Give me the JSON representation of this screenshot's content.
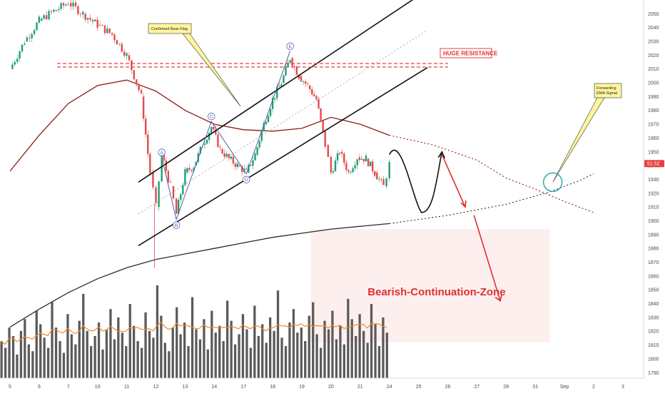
{
  "chart_data": {
    "type": "candlestick",
    "y_axis": {
      "position": "right",
      "ylim": [
        1786,
        2060
      ],
      "ticks": [
        2050,
        2040,
        2030,
        2020,
        2010,
        2000,
        1990,
        1980,
        1970,
        1960,
        1950,
        1940,
        1930,
        1920,
        1910,
        1900,
        1890,
        1880,
        1870,
        1860,
        1850,
        1840,
        1830,
        1820,
        1810,
        1800,
        1790
      ],
      "last_price_label": "51.52",
      "last_price_value": 1941.5
    },
    "x_axis": {
      "ticks": [
        "5",
        "6",
        "7",
        "10",
        "11",
        "12",
        "13",
        "14",
        "17",
        "18",
        "19",
        "20",
        "21",
        "24",
        "25",
        "26",
        "27",
        "28",
        "31",
        "Sep",
        "2",
        "3"
      ],
      "tick_day_index": [
        0,
        1,
        2,
        3,
        4,
        5,
        6,
        7,
        8,
        9,
        10,
        11,
        12,
        13,
        14,
        15,
        16,
        17,
        18,
        19,
        20,
        21
      ]
    },
    "labels": {
      "bear_flag_callout": "Confirmed Bear-Flag",
      "resistance_box": "HUGE RESISTANCE",
      "ema_callout": "Forwarding EMA-Signal",
      "zone_label": "Bearish-Continuation-Zone",
      "wave_points": [
        "A",
        "B",
        "C",
        "D",
        "E"
      ]
    },
    "wave_points": [
      {
        "label": "A",
        "day": 5.2,
        "price": 1946
      },
      {
        "label": "B",
        "day": 5.7,
        "price": 1901
      },
      {
        "label": "C",
        "day": 6.9,
        "price": 1972
      },
      {
        "label": "D",
        "day": 8.1,
        "price": 1934
      },
      {
        "label": "E",
        "day": 9.6,
        "price": 2023
      }
    ],
    "resistance_price": 2014,
    "channel": {
      "upper": [
        {
          "day": 4.4,
          "price": 1928
        },
        {
          "day": 14.0,
          "price": 2063
        }
      ],
      "lower": [
        {
          "day": 4.4,
          "price": 1882
        },
        {
          "day": 14.3,
          "price": 2011
        }
      ],
      "middle_dotted": [
        {
          "day": 4.4,
          "price": 1905
        },
        {
          "day": 14.3,
          "price": 2038
        }
      ]
    },
    "series": [
      {
        "style": "slow-ema",
        "color": "#2b2b2b",
        "points": [
          [
            0,
            1823
          ],
          [
            1,
            1836
          ],
          [
            2,
            1848
          ],
          [
            3,
            1858
          ],
          [
            4,
            1866
          ],
          [
            5,
            1872
          ],
          [
            6,
            1876
          ],
          [
            7,
            1880
          ],
          [
            8,
            1884
          ],
          [
            9,
            1888
          ],
          [
            10,
            1891
          ],
          [
            11,
            1894
          ],
          [
            12,
            1896
          ],
          [
            13,
            1898
          ]
        ],
        "projection": [
          [
            13,
            1898
          ],
          [
            15,
            1904
          ],
          [
            17,
            1912
          ],
          [
            18.5,
            1921
          ],
          [
            19.5,
            1929
          ],
          [
            20,
            1934
          ]
        ]
      },
      {
        "style": "fast-ema",
        "color": "#8b1a1a",
        "points": [
          [
            0,
            1936
          ],
          [
            1,
            1962
          ],
          [
            2,
            1985
          ],
          [
            3,
            1998
          ],
          [
            4,
            2002
          ],
          [
            5,
            1994
          ],
          [
            6,
            1980
          ],
          [
            7,
            1970
          ],
          [
            8,
            1966
          ],
          [
            9,
            1965
          ],
          [
            10,
            1967
          ],
          [
            11,
            1975
          ],
          [
            12,
            1970
          ],
          [
            13,
            1962
          ]
        ],
        "projection": [
          [
            13,
            1962
          ],
          [
            14.5,
            1955
          ],
          [
            16,
            1944
          ],
          [
            17,
            1931
          ],
          [
            18,
            1923
          ],
          [
            19,
            1914
          ],
          [
            20,
            1906
          ]
        ]
      }
    ],
    "price_path": [
      [
        0,
        2010
      ],
      [
        0.5,
        2030
      ],
      [
        1,
        2045
      ],
      [
        1.5,
        2052
      ],
      [
        2,
        2058
      ],
      [
        2.5,
        2050
      ],
      [
        3,
        2042
      ],
      [
        3.5,
        2035
      ],
      [
        4,
        2020
      ],
      [
        4.5,
        1990
      ],
      [
        4.8,
        1935
      ],
      [
        5.0,
        1910
      ],
      [
        5.2,
        1948
      ],
      [
        5.5,
        1925
      ],
      [
        5.7,
        1905
      ],
      [
        6.0,
        1935
      ],
      [
        6.3,
        1940
      ],
      [
        6.6,
        1955
      ],
      [
        6.9,
        1968
      ],
      [
        7.2,
        1952
      ],
      [
        7.5,
        1945
      ],
      [
        7.8,
        1940
      ],
      [
        8.1,
        1935
      ],
      [
        8.4,
        1948
      ],
      [
        8.7,
        1970
      ],
      [
        9.0,
        1988
      ],
      [
        9.3,
        2000
      ],
      [
        9.6,
        2018
      ],
      [
        9.9,
        2005
      ],
      [
        10.2,
        1998
      ],
      [
        10.5,
        1988
      ],
      [
        10.8,
        1955
      ],
      [
        11.0,
        1935
      ],
      [
        11.3,
        1950
      ],
      [
        11.6,
        1935
      ],
      [
        11.9,
        1946
      ],
      [
        12.2,
        1945
      ],
      [
        12.5,
        1935
      ],
      [
        12.8,
        1925
      ],
      [
        13.0,
        1941
      ]
    ],
    "price_forecast": [
      [
        13,
        1948
      ],
      [
        13.4,
        1952
      ],
      [
        13.8,
        1935
      ],
      [
        14.1,
        1906
      ],
      [
        14.5,
        1912
      ],
      [
        14.8,
        1950
      ]
    ],
    "bearish_target_arrow": [
      [
        14.8,
        1948
      ],
      [
        15.6,
        1910
      ],
      [
        15.9,
        1904
      ],
      [
        16.8,
        1842
      ]
    ],
    "bearish_zone": {
      "from_day": 10.3,
      "to_day": 18.5,
      "from_price": 1894,
      "to_price": 1812
    },
    "ema_signal_circle": {
      "day": 18.6,
      "price": 1928
    },
    "volume": [
      22,
      18,
      30,
      25,
      14,
      28,
      35,
      20,
      16,
      40,
      32,
      24,
      18,
      45,
      30,
      22,
      15,
      38,
      26,
      20,
      34,
      50,
      28,
      19,
      25,
      33,
      17,
      29,
      41,
      23,
      36,
      27,
      19,
      44,
      31,
      22,
      18,
      39,
      28,
      24,
      55,
      37,
      21,
      16,
      30,
      42,
      26,
      33,
      19,
      48,
      29,
      23,
      35,
      17,
      40,
      27,
      31,
      22,
      46,
      34,
      20,
      26,
      38,
      29,
      18,
      43,
      25,
      32,
      21,
      36,
      28,
      52,
      24,
      19,
      33,
      41,
      27,
      30,
      22,
      37,
      45,
      26,
      18,
      34,
      29,
      40,
      23,
      31,
      20,
      47,
      35,
      25,
      38,
      28,
      21,
      44,
      32,
      19,
      36,
      27
    ]
  }
}
